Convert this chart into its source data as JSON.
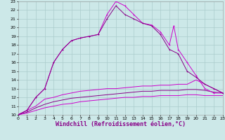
{
  "bg_color": "#cce8e8",
  "grid_color": "#aacccc",
  "line_color_main": "#cc00cc",
  "line_color_dark": "#880088",
  "xlabel": "Windchill (Refroidissement éolien,°C)",
  "xlabel_fontsize": 6,
  "ylim": [
    10,
    23
  ],
  "xlim": [
    0,
    23
  ],
  "yticks": [
    10,
    11,
    12,
    13,
    14,
    15,
    16,
    17,
    18,
    19,
    20,
    21,
    22,
    23
  ],
  "xticks": [
    0,
    1,
    2,
    3,
    4,
    5,
    6,
    7,
    8,
    9,
    10,
    11,
    12,
    13,
    14,
    15,
    16,
    17,
    18,
    19,
    20,
    21,
    22,
    23
  ],
  "curve1_x": [
    0,
    1,
    2,
    3,
    4,
    5,
    6,
    7,
    8,
    9,
    10,
    11,
    12,
    13,
    14,
    15,
    16,
    17,
    17.5,
    18,
    19,
    20,
    21,
    22,
    23
  ],
  "curve1_y": [
    10,
    10.5,
    12,
    13,
    16,
    17.5,
    18.5,
    18.8,
    19.0,
    19.2,
    21.5,
    23.0,
    22.5,
    21.5,
    20.5,
    20.3,
    19.5,
    18.0,
    20.2,
    17.5,
    16.0,
    14.5,
    13.0,
    12.5,
    12.5
  ],
  "curve2_x": [
    0,
    1,
    2,
    3,
    4,
    5,
    6,
    7,
    8,
    9,
    10,
    11,
    12,
    13,
    14,
    15,
    16,
    17,
    18,
    19,
    20,
    21,
    22,
    23
  ],
  "curve2_y": [
    10,
    10.5,
    12.0,
    13.0,
    16.0,
    17.5,
    18.5,
    18.8,
    19.0,
    19.2,
    21.0,
    22.5,
    21.5,
    21.0,
    20.5,
    20.2,
    19.2,
    17.5,
    17.0,
    15.0,
    14.3,
    13.5,
    13.0,
    12.5
  ],
  "curve3_x": [
    0,
    1,
    2,
    3,
    4,
    5,
    6,
    7,
    8,
    9,
    10,
    11,
    12,
    13,
    14,
    15,
    16,
    17,
    18,
    19,
    20,
    21,
    22,
    23
  ],
  "curve3_y": [
    10,
    10.5,
    11.0,
    11.8,
    12.0,
    12.3,
    12.5,
    12.7,
    12.8,
    12.9,
    13.0,
    13.0,
    13.1,
    13.2,
    13.3,
    13.3,
    13.4,
    13.4,
    13.5,
    13.5,
    14.0,
    13.5,
    13.0,
    12.5
  ],
  "curve4_x": [
    0,
    1,
    2,
    3,
    4,
    5,
    6,
    7,
    8,
    9,
    10,
    11,
    12,
    13,
    14,
    15,
    16,
    17,
    18,
    19,
    20,
    21,
    22,
    23
  ],
  "curve4_y": [
    10,
    10.3,
    10.8,
    11.2,
    11.5,
    11.7,
    11.9,
    12.0,
    12.1,
    12.2,
    12.3,
    12.4,
    12.5,
    12.6,
    12.7,
    12.7,
    12.8,
    12.8,
    12.8,
    12.9,
    12.9,
    12.8,
    12.6,
    12.5
  ],
  "curve5_x": [
    0,
    1,
    2,
    3,
    4,
    5,
    6,
    7,
    8,
    9,
    10,
    11,
    12,
    13,
    14,
    15,
    16,
    17,
    18,
    19,
    20,
    21,
    22,
    23
  ],
  "curve5_y": [
    10,
    10.2,
    10.5,
    10.8,
    11.0,
    11.2,
    11.3,
    11.5,
    11.6,
    11.7,
    11.8,
    11.9,
    12.0,
    12.0,
    12.1,
    12.1,
    12.2,
    12.2,
    12.2,
    12.3,
    12.3,
    12.2,
    12.2,
    12.2
  ]
}
